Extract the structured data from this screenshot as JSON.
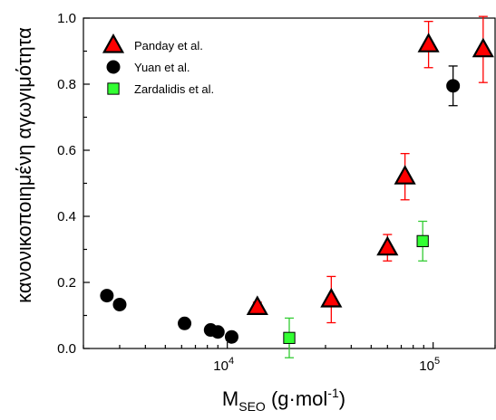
{
  "chart_data": {
    "type": "scatter",
    "xlabel": {
      "main": "M",
      "sub": "SEO",
      "pre_sup": " (g·mol",
      "sup": "-1",
      "post": ")"
    },
    "ylabel": "κανονικοποιημένη αγωγιμότητα",
    "xscale": "log",
    "xlim": [
      2000,
      200000
    ],
    "ylim": [
      0,
      1.0
    ],
    "yticks": [
      "0.0",
      "0.2",
      "0.4",
      "0.6",
      "0.8",
      "1.0"
    ],
    "xticks": [
      {
        "value": 10000,
        "base": "10",
        "exp": "4"
      },
      {
        "value": 100000,
        "base": "10",
        "exp": "5"
      }
    ],
    "legend_position": "top-left",
    "series": [
      {
        "name": "Panday et al.",
        "marker": "triangle",
        "fill": "#ff0000",
        "errcolor": "#ff0000",
        "points": [
          {
            "x": 14000,
            "y": 0.125,
            "err": 0.015
          },
          {
            "x": 32000,
            "y": 0.148,
            "err": 0.07
          },
          {
            "x": 60000,
            "y": 0.305,
            "err": 0.04
          },
          {
            "x": 73000,
            "y": 0.52,
            "err": 0.07
          },
          {
            "x": 95000,
            "y": 0.92,
            "err": 0.07
          },
          {
            "x": 175000,
            "y": 0.905,
            "err": 0.1
          }
        ]
      },
      {
        "name": "Yuan et al.",
        "marker": "circle",
        "fill": "#000000",
        "errcolor": "#000000",
        "points": [
          {
            "x": 2600,
            "y": 0.16
          },
          {
            "x": 3000,
            "y": 0.133
          },
          {
            "x": 6200,
            "y": 0.076
          },
          {
            "x": 8300,
            "y": 0.056
          },
          {
            "x": 9000,
            "y": 0.05
          },
          {
            "x": 10500,
            "y": 0.035
          },
          {
            "x": 125000,
            "y": 0.795,
            "err": 0.06
          }
        ]
      },
      {
        "name": "Zardalidis et al.",
        "marker": "square",
        "fill": "#33ff33",
        "errcolor": "#33cc33",
        "points": [
          {
            "x": 20000,
            "y": 0.032,
            "err": 0.06
          },
          {
            "x": 89000,
            "y": 0.325,
            "err": 0.06
          }
        ]
      }
    ]
  }
}
